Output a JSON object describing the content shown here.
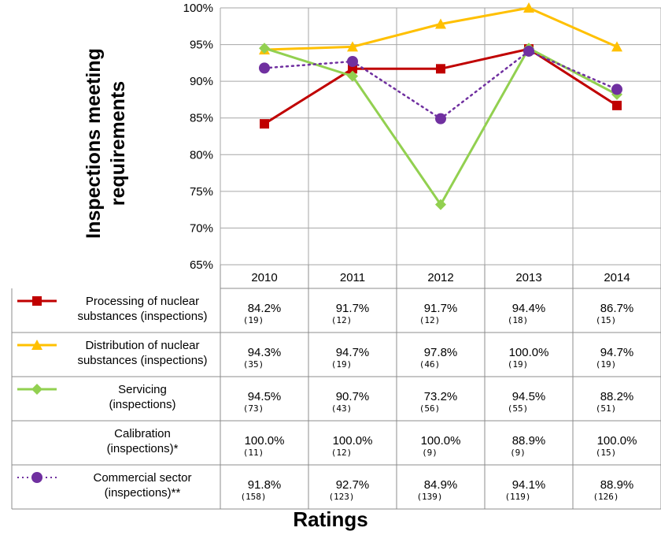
{
  "chart_data": {
    "type": "line",
    "ylabel": "Inspections meeting requirements",
    "xlabel": "Ratings",
    "categories": [
      "2010",
      "2011",
      "2012",
      "2013",
      "2014"
    ],
    "ylim": [
      65,
      100
    ],
    "yticks": [
      "65%",
      "70%",
      "75%",
      "80%",
      "85%",
      "90%",
      "95%",
      "100%"
    ],
    "ytick_values": [
      65,
      70,
      75,
      80,
      85,
      90,
      95,
      100
    ],
    "grid": true,
    "series": [
      {
        "name_lines": [
          "Processing of nuclear",
          "substances (inspections)"
        ],
        "values": [
          84.2,
          91.7,
          91.7,
          94.4,
          86.7
        ],
        "value_labels": [
          "84.2%",
          "91.7%",
          "91.7%",
          "94.4%",
          "86.7%"
        ],
        "counts": [
          "(19)",
          "(12)",
          "(12)",
          "(18)",
          "(15)"
        ],
        "color": "#C00000",
        "marker": "square",
        "dash": "solid",
        "plotted": true
      },
      {
        "name_lines": [
          "Distribution of nuclear",
          "substances (inspections)"
        ],
        "values": [
          94.3,
          94.7,
          97.8,
          100.0,
          94.7
        ],
        "value_labels": [
          "94.3%",
          "94.7%",
          "97.8%",
          "100.0%",
          "94.7%"
        ],
        "counts": [
          "(35)",
          "(19)",
          "(46)",
          "(19)",
          "(19)"
        ],
        "color": "#FFC000",
        "marker": "triangle",
        "dash": "solid",
        "plotted": true
      },
      {
        "name_lines": [
          "Servicing",
          "(inspections)"
        ],
        "values": [
          94.5,
          90.7,
          73.2,
          94.5,
          88.2
        ],
        "value_labels": [
          "94.5%",
          "90.7%",
          "73.2%",
          "94.5%",
          "88.2%"
        ],
        "counts": [
          "(73)",
          "(43)",
          "(56)",
          "(55)",
          "(51)"
        ],
        "color": "#92D050",
        "marker": "diamond",
        "dash": "solid",
        "plotted": true
      },
      {
        "name_lines": [
          "Calibration",
          "(inspections)*"
        ],
        "values": [
          100.0,
          100.0,
          100.0,
          88.9,
          100.0
        ],
        "value_labels": [
          "100.0%",
          "100.0%",
          "100.0%",
          "88.9%",
          "100.0%"
        ],
        "counts": [
          "(11)",
          "(12)",
          "(9)",
          "(9)",
          "(15)"
        ],
        "color": "#000000",
        "marker": "none",
        "dash": "none",
        "plotted": false
      },
      {
        "name_lines": [
          "Commercial sector",
          "(inspections)**"
        ],
        "values": [
          91.8,
          92.7,
          84.9,
          94.1,
          88.9
        ],
        "value_labels": [
          "91.8%",
          "92.7%",
          "84.9%",
          "94.1%",
          "88.9%"
        ],
        "counts": [
          "(158)",
          "(123)",
          "(139)",
          "(119)",
          "(126)"
        ],
        "color": "#7030A0",
        "marker": "circle",
        "dash": "dotted",
        "plotted": true
      }
    ]
  },
  "colors": {
    "grid": "#a6a6a6",
    "table_border": "#8c8c8c"
  }
}
